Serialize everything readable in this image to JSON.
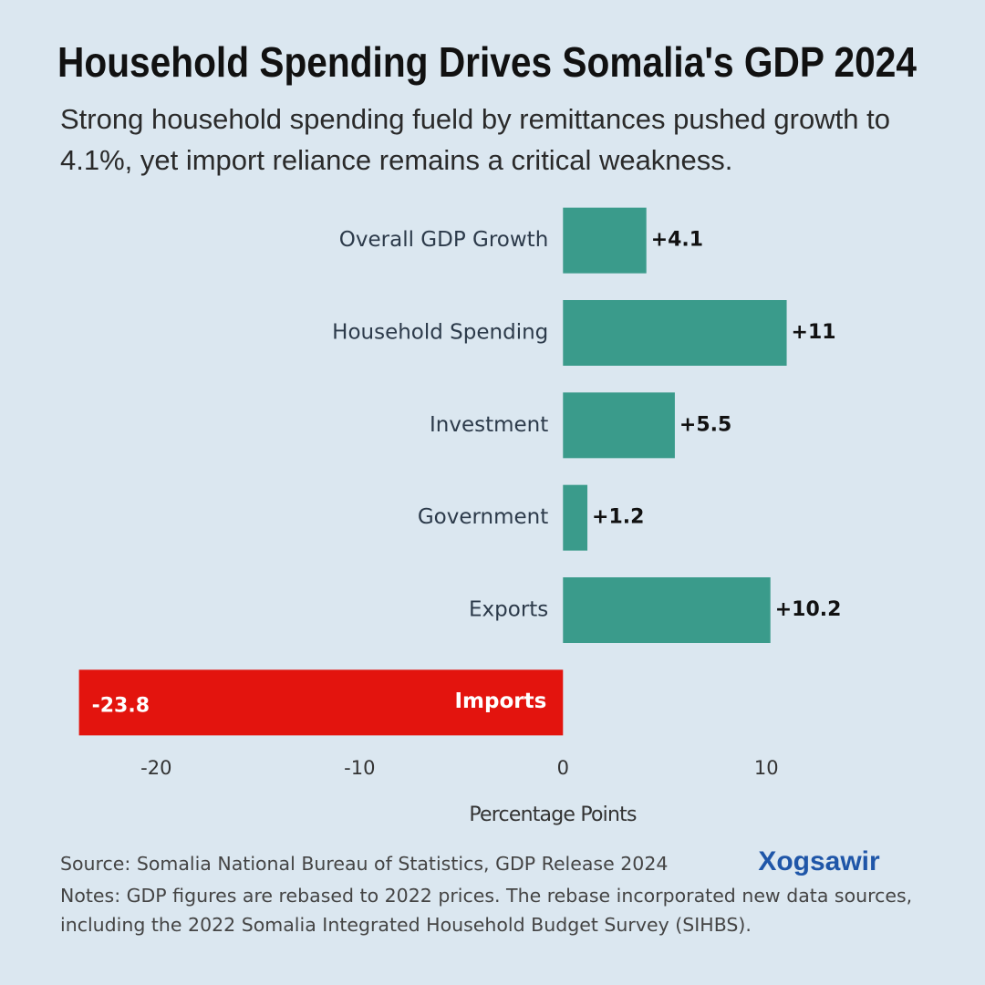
{
  "chart_data": {
    "type": "barh",
    "title": "Household Spending Drives Somalia's GDP 2024",
    "subtitle": "Strong household spending fueld by remittances pushed growth to 4.1%, yet import reliance remains a critical weakness.",
    "categories": [
      "Overall GDP Growth",
      "Household Spending",
      "Investment",
      "Government",
      "Exports",
      "Imports"
    ],
    "values": [
      4.1,
      11,
      5.5,
      1.2,
      10.2,
      -23.8
    ],
    "value_labels": [
      "+4.1",
      "+11",
      "+5.5",
      "+1.2",
      "+10.2",
      "-23.8"
    ],
    "colors": [
      "#3a9b8b",
      "#3a9b8b",
      "#3a9b8b",
      "#3a9b8b",
      "#3a9b8b",
      "#e3140e"
    ],
    "xlim": [
      -24.5,
      12.5
    ],
    "xticks": [
      -20,
      -10,
      0,
      10
    ],
    "xlabel": "Percentage Points",
    "grid": false,
    "source": "Source: Somalia National Bureau of Statistics, GDP Release 2024",
    "notes": "Notes: GDP figures are rebased to 2022 prices. The rebase incorporated new data sources, including the 2022 Somalia Integrated Household Budget Survey (SIHBS).",
    "brand": "Xogsawir"
  }
}
